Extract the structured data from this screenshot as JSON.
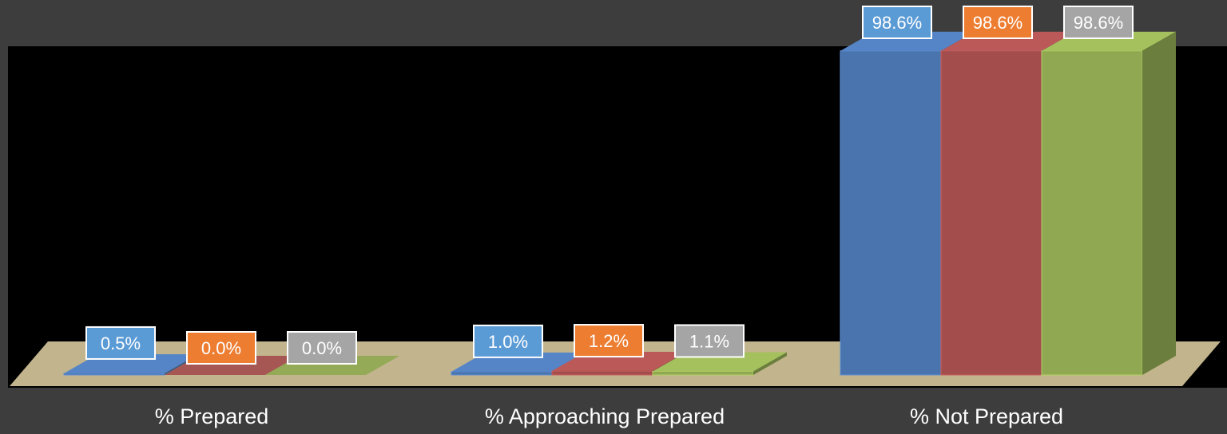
{
  "chart_data": {
    "type": "bar",
    "style": "3d-clustered",
    "categories": [
      "% Prepared",
      "% Approaching Prepared",
      "% Not Prepared"
    ],
    "series": [
      {
        "values": [
          0.5,
          1.0,
          98.6
        ],
        "labels": [
          "0.5%",
          "1.0%",
          "98.6%"
        ],
        "bar_color": "#4a74ad",
        "label_color": "#5b9bd5"
      },
      {
        "values": [
          0.0,
          1.2,
          98.6
        ],
        "labels": [
          "0.0%",
          "1.2%",
          "98.6%"
        ],
        "bar_color": "#a34d4d",
        "label_color": "#ed7d31"
      },
      {
        "values": [
          0.0,
          1.1,
          98.6
        ],
        "labels": [
          "0.0%",
          "1.1%",
          "98.6%"
        ],
        "bar_color": "#8fa851",
        "label_color": "#a5a5a5"
      }
    ],
    "ylim": [
      0,
      100
    ],
    "grid": false,
    "legend": "none",
    "title": "",
    "xlabel": "",
    "ylabel": ""
  },
  "colors": {
    "background": "#3d3d3d",
    "plot_area": "#000000",
    "floor": "#c2b48c",
    "label_text": "#ffffff",
    "category_text": "#ffffff"
  }
}
